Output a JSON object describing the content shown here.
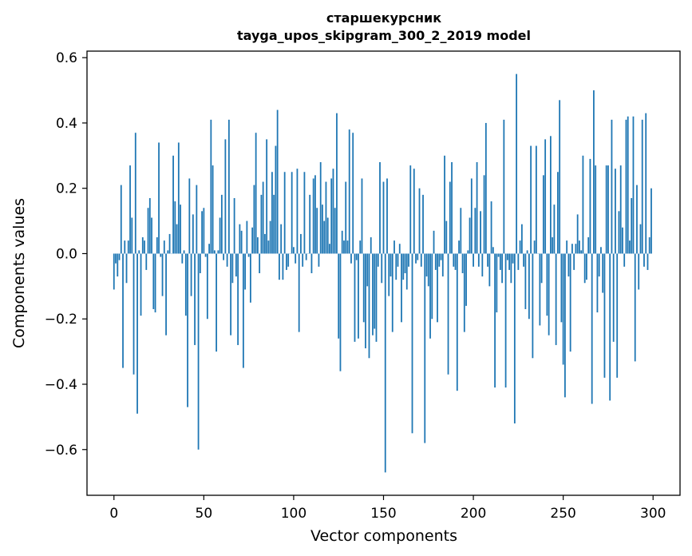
{
  "chart_data": {
    "type": "bar",
    "title": "старшекурсник",
    "subtitle": "tayga_upos_skipgram_300_2_2019 model",
    "xlabel": "Vector components",
    "ylabel": "Components values",
    "xlim": [
      -15,
      315
    ],
    "ylim": [
      -0.74,
      0.62
    ],
    "xticks": [
      0,
      50,
      100,
      150,
      200,
      250,
      300
    ],
    "xtick_labels": [
      "0",
      "50",
      "100",
      "150",
      "200",
      "250",
      "300"
    ],
    "yticks": [
      -0.6,
      -0.4,
      -0.2,
      0.0,
      0.2,
      0.4,
      0.6
    ],
    "ytick_labels": [
      "−0.6",
      "−0.4",
      "−0.2",
      "0.0",
      "0.2",
      "0.4",
      "0.6"
    ],
    "grid": false,
    "bar_color": "#1f77b4",
    "x": [
      0,
      1,
      2,
      3,
      4,
      5,
      6,
      7,
      8,
      9,
      10,
      11,
      12,
      13,
      14,
      15,
      16,
      17,
      18,
      19,
      20,
      21,
      22,
      23,
      24,
      25,
      26,
      27,
      28,
      29,
      30,
      31,
      32,
      33,
      34,
      35,
      36,
      37,
      38,
      39,
      40,
      41,
      42,
      43,
      44,
      45,
      46,
      47,
      48,
      49,
      50,
      51,
      52,
      53,
      54,
      55,
      56,
      57,
      58,
      59,
      60,
      61,
      62,
      63,
      64,
      65,
      66,
      67,
      68,
      69,
      70,
      71,
      72,
      73,
      74,
      75,
      76,
      77,
      78,
      79,
      80,
      81,
      82,
      83,
      84,
      85,
      86,
      87,
      88,
      89,
      90,
      91,
      92,
      93,
      94,
      95,
      96,
      97,
      98,
      99,
      100,
      101,
      102,
      103,
      104,
      105,
      106,
      107,
      108,
      109,
      110,
      111,
      112,
      113,
      114,
      115,
      116,
      117,
      118,
      119,
      120,
      121,
      122,
      123,
      124,
      125,
      126,
      127,
      128,
      129,
      130,
      131,
      132,
      133,
      134,
      135,
      136,
      137,
      138,
      139,
      140,
      141,
      142,
      143,
      144,
      145,
      146,
      147,
      148,
      149,
      150,
      151,
      152,
      153,
      154,
      155,
      156,
      157,
      158,
      159,
      160,
      161,
      162,
      163,
      164,
      165,
      166,
      167,
      168,
      169,
      170,
      171,
      172,
      173,
      174,
      175,
      176,
      177,
      178,
      179,
      180,
      181,
      182,
      183,
      184,
      185,
      186,
      187,
      188,
      189,
      190,
      191,
      192,
      193,
      194,
      195,
      196,
      197,
      198,
      199,
      200,
      201,
      202,
      203,
      204,
      205,
      206,
      207,
      208,
      209,
      210,
      211,
      212,
      213,
      214,
      215,
      216,
      217,
      218,
      219,
      220,
      221,
      222,
      223,
      224,
      225,
      226,
      227,
      228,
      229,
      230,
      231,
      232,
      233,
      234,
      235,
      236,
      237,
      238,
      239,
      240,
      241,
      242,
      243,
      244,
      245,
      246,
      247,
      248,
      249,
      250,
      251,
      252,
      253,
      254,
      255,
      256,
      257,
      258,
      259,
      260,
      261,
      262,
      263,
      264,
      265,
      266,
      267,
      268,
      269,
      270,
      271,
      272,
      273,
      274,
      275,
      276,
      277,
      278,
      279,
      280,
      281,
      282,
      283,
      284,
      285,
      286,
      287,
      288,
      289,
      290,
      291,
      292,
      293,
      294,
      295,
      296,
      297,
      298,
      299
    ],
    "values": [
      -0.11,
      -0.03,
      -0.07,
      -0.02,
      0.21,
      -0.35,
      0.04,
      -0.09,
      0.04,
      0.27,
      0.11,
      -0.37,
      0.37,
      -0.49,
      0.01,
      -0.19,
      0.05,
      0.04,
      -0.05,
      0.14,
      0.17,
      0.11,
      -0.17,
      -0.18,
      0.05,
      0.34,
      -0.01,
      -0.13,
      0.04,
      -0.25,
      0.01,
      0.06,
      0.0,
      0.3,
      0.16,
      0.09,
      0.34,
      0.15,
      -0.03,
      0.01,
      -0.19,
      -0.47,
      0.23,
      -0.13,
      0.12,
      -0.28,
      0.21,
      -0.6,
      -0.06,
      0.13,
      0.14,
      -0.01,
      -0.2,
      0.03,
      0.41,
      0.27,
      0.01,
      -0.3,
      0.01,
      0.11,
      0.18,
      -0.02,
      0.35,
      -0.04,
      0.41,
      -0.25,
      -0.09,
      0.17,
      -0.07,
      -0.28,
      0.09,
      0.07,
      -0.35,
      -0.11,
      0.1,
      -0.01,
      -0.15,
      0.08,
      0.21,
      0.37,
      0.05,
      -0.06,
      0.18,
      0.22,
      0.06,
      0.35,
      0.04,
      0.1,
      0.25,
      0.18,
      0.33,
      0.44,
      -0.08,
      0.09,
      -0.08,
      0.25,
      -0.05,
      -0.04,
      0.0,
      0.25,
      0.02,
      -0.03,
      0.26,
      -0.24,
      0.06,
      -0.04,
      0.25,
      -0.02,
      0.0,
      0.18,
      -0.06,
      0.23,
      0.24,
      0.14,
      -0.04,
      0.28,
      0.15,
      0.1,
      0.22,
      0.11,
      0.03,
      0.23,
      0.26,
      0.14,
      0.43,
      -0.26,
      -0.36,
      0.07,
      0.04,
      0.22,
      0.04,
      0.38,
      -0.03,
      0.37,
      -0.27,
      -0.02,
      -0.26,
      0.04,
      0.23,
      -0.21,
      -0.29,
      -0.1,
      -0.32,
      0.05,
      -0.25,
      -0.23,
      -0.27,
      -0.04,
      0.28,
      -0.09,
      0.22,
      -0.67,
      0.23,
      -0.13,
      -0.07,
      -0.24,
      0.04,
      -0.08,
      -0.04,
      0.03,
      -0.21,
      -0.08,
      -0.06,
      -0.11,
      -0.04,
      0.27,
      -0.55,
      0.26,
      -0.03,
      -0.02,
      0.2,
      -0.04,
      0.18,
      -0.58,
      -0.07,
      -0.1,
      -0.26,
      -0.2,
      0.07,
      -0.05,
      -0.21,
      -0.04,
      -0.02,
      -0.07,
      0.3,
      0.1,
      -0.37,
      0.22,
      0.28,
      -0.04,
      -0.05,
      -0.42,
      0.04,
      0.14,
      -0.06,
      -0.24,
      -0.16,
      0.01,
      0.11,
      0.23,
      -0.04,
      0.14,
      0.28,
      -0.04,
      0.13,
      -0.07,
      0.24,
      0.4,
      -0.04,
      -0.1,
      0.16,
      0.02,
      -0.41,
      -0.18,
      -0.01,
      -0.05,
      -0.09,
      0.41,
      -0.41,
      -0.02,
      -0.05,
      -0.09,
      -0.03,
      -0.52,
      0.55,
      -0.05,
      0.04,
      0.09,
      -0.04,
      -0.17,
      0.01,
      -0.2,
      0.33,
      -0.32,
      0.04,
      0.33,
      0.0,
      -0.22,
      -0.09,
      0.24,
      0.35,
      -0.19,
      -0.25,
      0.36,
      0.05,
      0.15,
      -0.28,
      0.25,
      0.47,
      -0.21,
      -0.34,
      -0.44,
      0.04,
      -0.07,
      -0.3,
      0.03,
      -0.05,
      0.03,
      0.12,
      0.04,
      0.01,
      0.3,
      -0.09,
      -0.08,
      0.05,
      0.29,
      -0.46,
      0.5,
      0.27,
      -0.18,
      -0.07,
      0.02,
      -0.12,
      -0.38,
      0.27,
      0.27,
      -0.45,
      0.41,
      -0.27,
      0.26,
      -0.38,
      0.13,
      0.27,
      0.08,
      -0.04,
      0.41,
      0.42,
      0.04,
      0.17,
      0.42,
      -0.33,
      0.21,
      -0.11,
      0.09,
      0.41,
      -0.04,
      0.43,
      -0.05,
      0.05,
      0.2
    ],
    "y_zero": 0
  }
}
